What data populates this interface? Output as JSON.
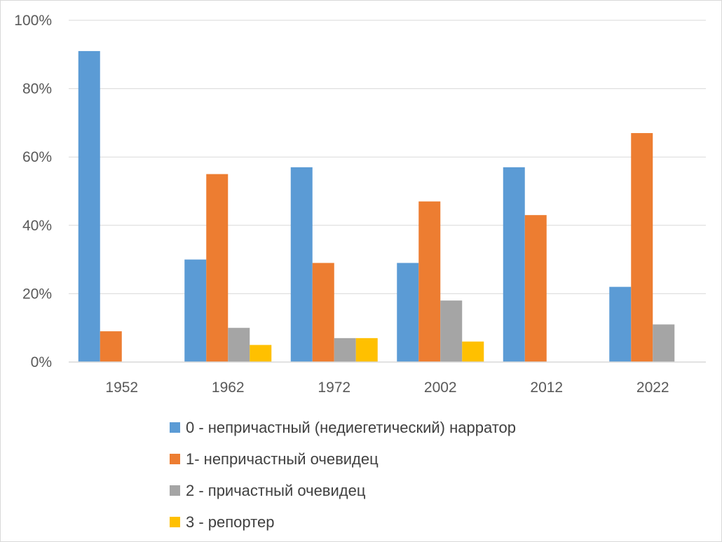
{
  "chart_data": {
    "type": "bar",
    "title": "",
    "xlabel": "",
    "ylabel": "",
    "categories": [
      "1952",
      "1962",
      "1972",
      "2002",
      "2012",
      "2022"
    ],
    "y_ticks": [
      "0%",
      "20%",
      "40%",
      "60%",
      "80%",
      "100%"
    ],
    "ylim": [
      0,
      100
    ],
    "y_unit": "%",
    "grid": true,
    "legend_position": "bottom",
    "series": [
      {
        "name": "0 - непричастный (недиегетический) нарратор",
        "color": "#5b9bd5",
        "values": [
          91,
          30,
          57,
          29,
          57,
          22
        ]
      },
      {
        "name": "1- непричастный очевидец",
        "color": "#ed7d31",
        "values": [
          9,
          55,
          29,
          47,
          43,
          67
        ]
      },
      {
        "name": "2 - причастный очевидец",
        "color": "#a5a5a5",
        "values": [
          0,
          10,
          7,
          18,
          0,
          11
        ]
      },
      {
        "name": "3 - репортер",
        "color": "#ffc000",
        "values": [
          0,
          5,
          7,
          6,
          0,
          0
        ]
      }
    ]
  }
}
